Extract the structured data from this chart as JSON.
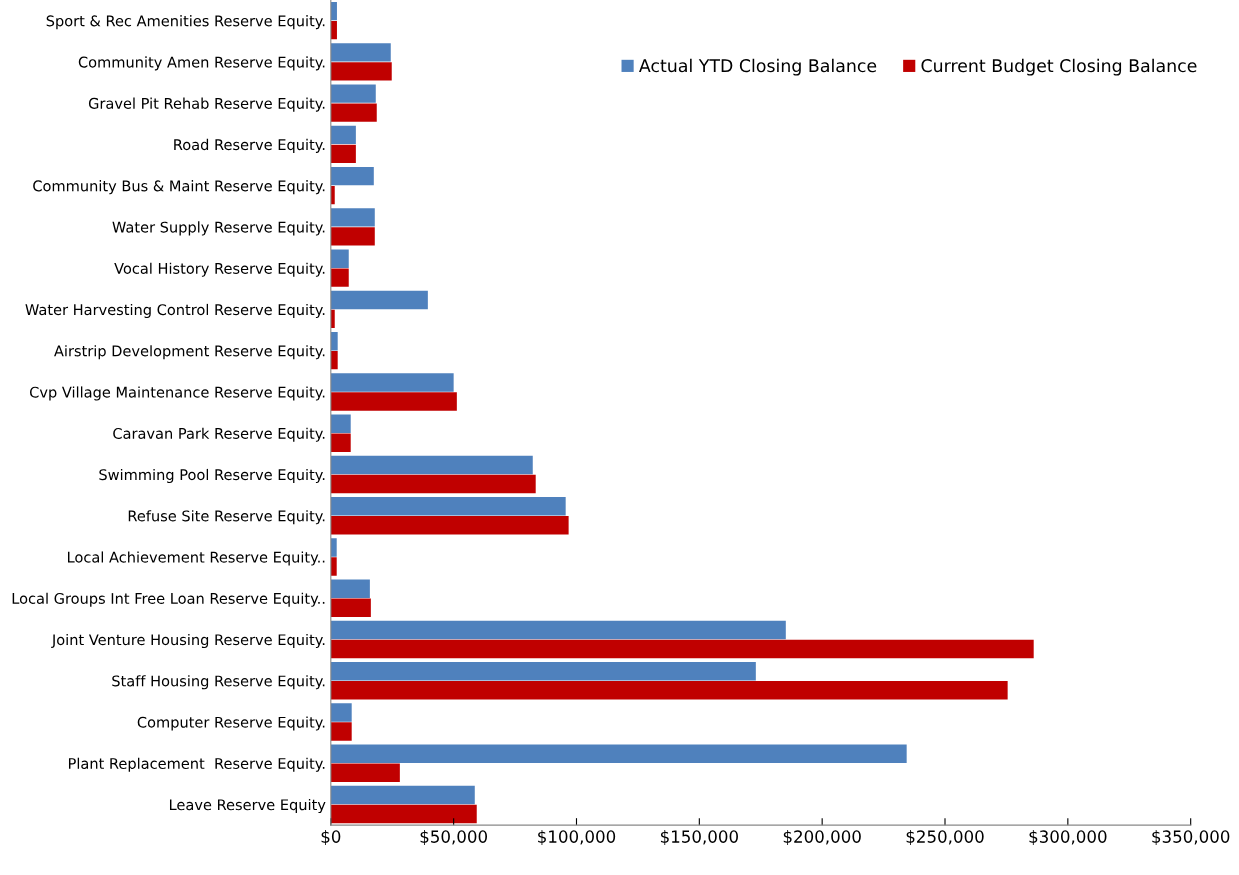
{
  "chart_data": {
    "type": "bar",
    "orientation": "horizontal",
    "categories": [
      "Sport & Rec Amenities Reserve Equity.",
      "Community Amen Reserve Equity.",
      "Gravel Pit Rehab Reserve Equity.",
      "Road Reserve Equity.",
      "Community Bus & Maint Reserve Equity.",
      "Water Supply Reserve Equity.",
      "Vocal History Reserve Equity.",
      "Water Harvesting Control Reserve Equity.",
      "Airstrip Development Reserve Equity.",
      "Cvp Village Maintenance Reserve Equity.",
      "Caravan Park Reserve Equity.",
      "Swimming Pool Reserve Equity.",
      "Refuse Site Reserve Equity.",
      "Local Achievement Reserve Equity..",
      "Local Groups Int Free Loan Reserve Equity..",
      "Joint Venture Housing Reserve Equity.",
      "Staff Housing Reserve Equity.",
      "Computer Reserve Equity.",
      "Plant Replacement  Reserve Equity.",
      "Leave Reserve Equity"
    ],
    "series": [
      {
        "name": "Actual YTD Closing Balance",
        "color": "#4f81bd",
        "values": [
          2500,
          24400,
          18300,
          10200,
          17500,
          17900,
          7300,
          39500,
          2800,
          50000,
          8100,
          82200,
          95600,
          2400,
          15900,
          185200,
          173000,
          8500,
          234400,
          58600
        ]
      },
      {
        "name": "Current Budget Closing Balance",
        "color": "#c00000",
        "values": [
          2500,
          24800,
          18700,
          10200,
          1600,
          17900,
          7300,
          1600,
          2800,
          51300,
          8100,
          83400,
          96800,
          2400,
          16300,
          286100,
          275500,
          8500,
          28100,
          59400
        ]
      }
    ],
    "xlim": [
      0,
      350000
    ],
    "xticks": [
      {
        "value": 0,
        "label": "$0"
      },
      {
        "value": 50000,
        "label": "$50,000"
      },
      {
        "value": 100000,
        "label": "$100,000"
      },
      {
        "value": 150000,
        "label": "$150,000"
      },
      {
        "value": 200000,
        "label": "$200,000"
      },
      {
        "value": 250000,
        "label": "$250,000"
      },
      {
        "value": 300000,
        "label": "$300,000"
      },
      {
        "value": 350000,
        "label": "$350,000"
      }
    ],
    "grid": false,
    "legend": "top right"
  }
}
